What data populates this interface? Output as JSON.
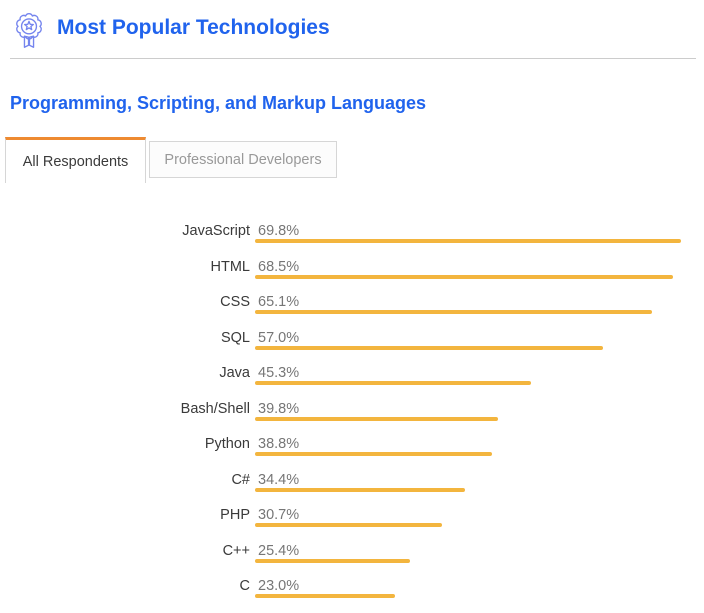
{
  "header": {
    "title": "Most Popular Technologies",
    "icon": "award-ribbon-icon"
  },
  "section": {
    "title": "Programming, Scripting, and Markup Languages"
  },
  "tabs": [
    {
      "label": "All Respondents",
      "active": true
    },
    {
      "label": "Professional Developers",
      "active": false
    }
  ],
  "colors": {
    "heading_blue": "#2063ed",
    "icon_blue": "#7585ee",
    "tab_active_accent": "#ee8a31",
    "bar_amber": "#f3b53e",
    "label_text": "#3a3a3a",
    "value_text": "#767676",
    "inactive_tab_text": "#999999",
    "border_gray": "#d6d6d6"
  },
  "chart_data": {
    "type": "bar",
    "orientation": "horizontal",
    "title": "Programming, Scripting, and Markup Languages",
    "categories": [
      "JavaScript",
      "HTML",
      "CSS",
      "SQL",
      "Java",
      "Bash/Shell",
      "Python",
      "C#",
      "PHP",
      "C++",
      "C"
    ],
    "values": [
      69.8,
      68.5,
      65.1,
      57.0,
      45.3,
      39.8,
      38.8,
      34.4,
      30.7,
      25.4,
      23.0
    ],
    "value_suffix": "%",
    "xlabel": "",
    "ylabel": "",
    "xlim": [
      0,
      69.8
    ],
    "grid": false,
    "legend": "none",
    "bar_color": "#f3b53e"
  }
}
